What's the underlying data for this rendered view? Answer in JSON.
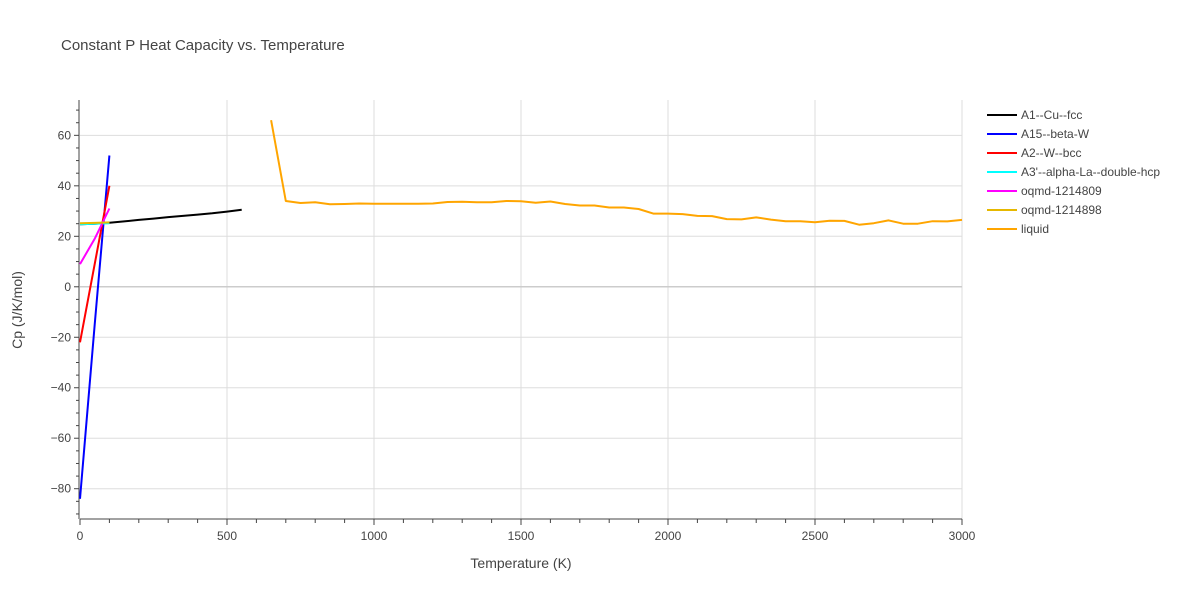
{
  "chart_data": {
    "type": "line",
    "title": "Constant P Heat Capacity vs. Temperature",
    "xlabel": "Temperature (K)",
    "ylabel": "Cp (J/K/mol)",
    "xlim": [
      0,
      3000
    ],
    "ylim": [
      -92,
      74
    ],
    "xticks": [
      0,
      500,
      1000,
      1500,
      2000,
      2500,
      3000
    ],
    "yticks": [
      -80,
      -60,
      -40,
      -20,
      0,
      20,
      40,
      60
    ],
    "x_tick_labels": [
      "0",
      "500",
      "1000",
      "1500",
      "2000",
      "2500",
      "3000"
    ],
    "y_tick_labels": [
      "−80",
      "−60",
      "−40",
      "−20",
      "0",
      "20",
      "40",
      "60"
    ],
    "grid": true,
    "legend_position": "right",
    "series": [
      {
        "name": "A1--Cu--fcc",
        "color": "#000000",
        "x": [
          0,
          50,
          100,
          150,
          200,
          250,
          300,
          350,
          400,
          450,
          500,
          550
        ],
        "y": [
          24.8,
          25.0,
          25.4,
          25.9,
          26.5,
          27.0,
          27.6,
          28.1,
          28.6,
          29.1,
          29.8,
          30.5
        ]
      },
      {
        "name": "A15--beta-W",
        "color": "#0000ff",
        "x": [
          0,
          50,
          100
        ],
        "y": [
          -84,
          -15,
          52
        ]
      },
      {
        "name": "A2--W--bcc",
        "color": "#ff0000",
        "x": [
          0,
          50,
          100
        ],
        "y": [
          -22,
          9,
          40
        ]
      },
      {
        "name": "A3'--alpha-La--double-hcp",
        "color": "#00ffff",
        "x": [
          0,
          50,
          100
        ],
        "y": [
          24.8,
          25.0,
          25.2
        ]
      },
      {
        "name": "oqmd-1214809",
        "color": "#ff00ff",
        "x": [
          0,
          50,
          100
        ],
        "y": [
          9,
          19,
          31
        ]
      },
      {
        "name": "oqmd-1214898",
        "color": "#e6b800",
        "x": [
          0,
          50,
          100
        ],
        "y": [
          25.2,
          25.3,
          25.5
        ]
      },
      {
        "name": "liquid",
        "color": "#ffa500",
        "x": [
          650,
          700,
          750,
          800,
          850,
          900,
          950,
          1000,
          1050,
          1100,
          1150,
          1200,
          1250,
          1300,
          1350,
          1400,
          1450,
          1500,
          1550,
          1600,
          1650,
          1700,
          1750,
          1800,
          1850,
          1900,
          1950,
          2000,
          2050,
          2100,
          2150,
          2200,
          2250,
          2300,
          2350,
          2400,
          2450,
          2500,
          2550,
          2600,
          2650,
          2700,
          2750,
          2800,
          2850,
          2900,
          2950,
          3000
        ],
        "y": [
          66,
          34,
          33.2,
          33.5,
          32.7,
          32.8,
          33.0,
          32.9,
          32.9,
          32.9,
          32.9,
          33.0,
          33.6,
          33.7,
          33.5,
          33.5,
          34.0,
          33.9,
          33.3,
          33.8,
          32.8,
          32.2,
          32.2,
          31.4,
          31.4,
          30.8,
          29.0,
          29.0,
          28.8,
          28.1,
          28.0,
          26.8,
          26.7,
          27.5,
          26.6,
          26.0,
          26.0,
          25.6,
          26.2,
          26.1,
          24.6,
          25.2,
          26.3,
          25.0,
          25.0,
          26.0,
          25.9,
          26.5
        ]
      }
    ]
  }
}
